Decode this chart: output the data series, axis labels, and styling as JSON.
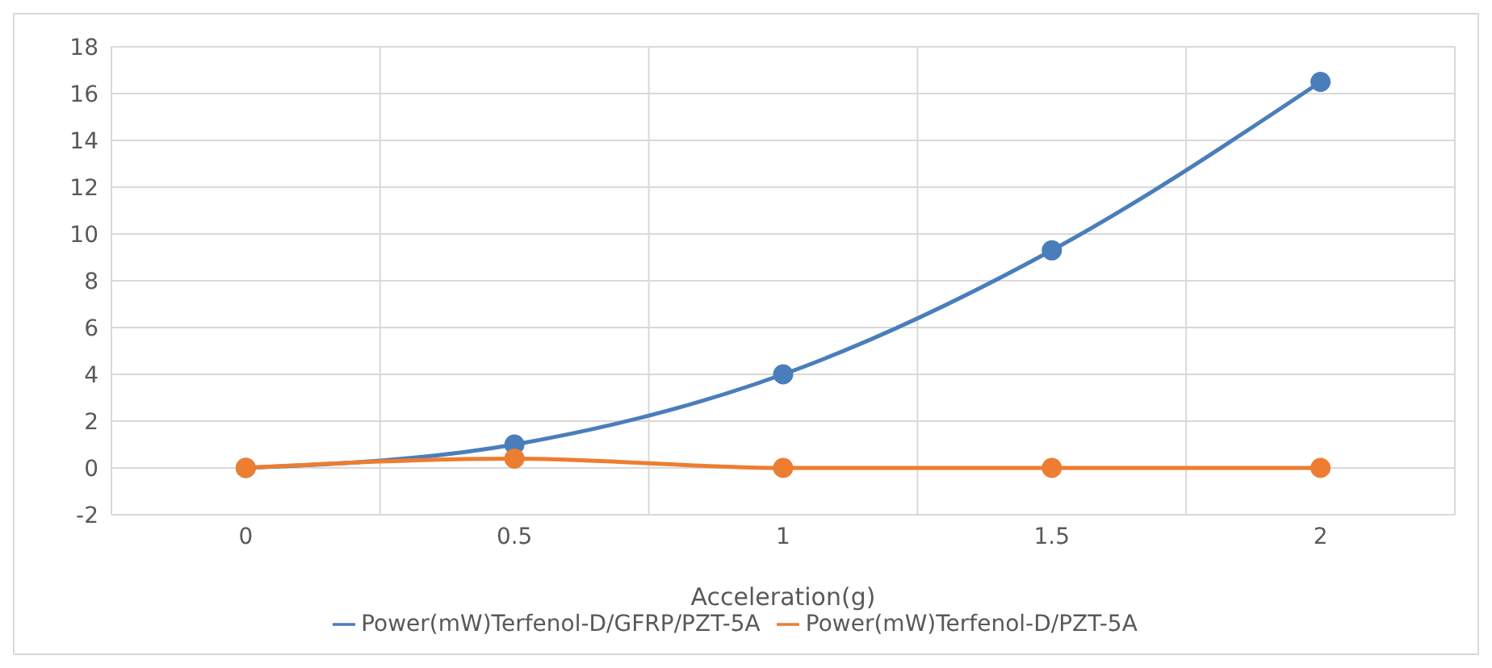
{
  "chart_data": {
    "type": "line",
    "xlabel": "Acceleration(g)",
    "categories": [
      "0",
      "0.5",
      "1",
      "1.5",
      "2"
    ],
    "series": [
      {
        "name": "Power(mW)Terfenol-D/GFRP/PZT-5A",
        "color": "#4a7ebb",
        "values": [
          0,
          1,
          4,
          9.3,
          16.5
        ]
      },
      {
        "name": "Power(mW)Terfenol-D/PZT-5A",
        "color": "#ed7d31",
        "values": [
          0,
          0.4,
          0,
          0,
          0
        ]
      }
    ],
    "ylim": [
      -2,
      18
    ],
    "yticks": [
      -2,
      0,
      2,
      4,
      6,
      8,
      10,
      12,
      14,
      16,
      18
    ],
    "grid": true,
    "legend": "bottom",
    "marker": "circle",
    "line_style": "solid"
  }
}
